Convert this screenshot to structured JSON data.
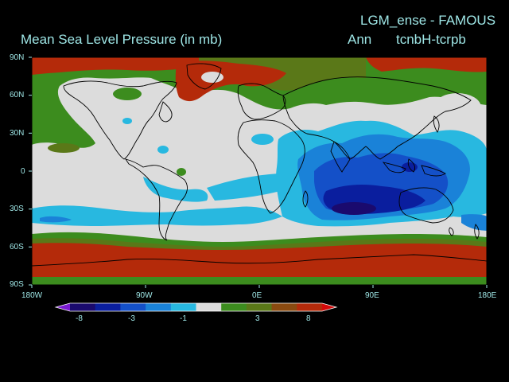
{
  "header": {
    "title": "Mean Sea Level Pressure (in mb)",
    "model": "LGM_ense - FAMOUS",
    "period": "Ann",
    "experiment": "tcnbH-tcrpb"
  },
  "axes": {
    "lat_labels": [
      "90N",
      "60N",
      "30N",
      "0",
      "30S",
      "60S",
      "90S"
    ],
    "lon_labels": [
      "180W",
      "90W",
      "0E",
      "90E",
      "180E"
    ]
  },
  "colorbar": {
    "labels": [
      "-8",
      "-3",
      "-1",
      "3",
      "8"
    ],
    "colors": [
      "#1a0a6e",
      "#0a1e9e",
      "#1450c8",
      "#1a82d8",
      "#28b8e0",
      "#dcdcdc",
      "#3c8c1e",
      "#5a7818",
      "#8a4a10",
      "#b42a0a"
    ]
  },
  "colors": {
    "text": "#9ee6e6",
    "neutral": "#dcdcdc",
    "positive_low": "#3c8c1e",
    "positive_mid": "#5a7818",
    "positive_high": "#b42a0a",
    "negative_low": "#28b8e0",
    "negative_mid": "#1a82d8",
    "negative_high": "#0a1e9e",
    "negative_max": "#1a0a6e"
  }
}
